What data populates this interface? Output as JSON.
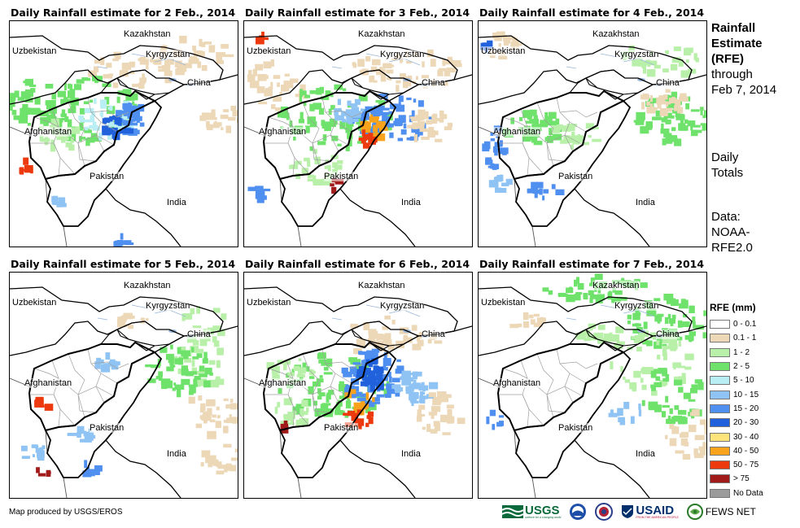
{
  "panels": [
    {
      "title": "Daily Rainfall estimate for 2 Feb., 2014",
      "variant": "d2"
    },
    {
      "title": "Daily Rainfall estimate for 3 Feb., 2014",
      "variant": "d3"
    },
    {
      "title": "Daily Rainfall estimate for 4 Feb., 2014",
      "variant": "d4"
    },
    {
      "title": "Daily Rainfall estimate for 5 Feb., 2014",
      "variant": "d5"
    },
    {
      "title": "Daily Rainfall estimate for 6 Feb., 2014",
      "variant": "d6"
    },
    {
      "title": "Daily Rainfall estimate for 7 Feb., 2014",
      "variant": "d7"
    }
  ],
  "map_labels": {
    "kazakhstan": "Kazakhstan",
    "uzbekistan": "Uzbekistan",
    "kyrgyzstan": "Kyrgyzstan",
    "china": "China",
    "afghanistan": "Afghanistan",
    "pakistan": "Pakistan",
    "india": "India"
  },
  "sidebar": {
    "title_lines": [
      "Rainfall",
      "Estimate",
      "(RFE)"
    ],
    "through_lines": [
      "through",
      "Feb 7, 2014"
    ],
    "daily_lines": [
      "Daily",
      "Totals"
    ],
    "data_lines": [
      "Data:",
      "NOAA-",
      "RFE2.0"
    ]
  },
  "legend": {
    "title": "RFE (mm)",
    "items": [
      {
        "label": "0 - 0.1",
        "color": "#ffffff"
      },
      {
        "label": "0.1 - 1",
        "color": "#ecd7b6"
      },
      {
        "label": "1 - 2",
        "color": "#b9f0a9"
      },
      {
        "label": "2 - 5",
        "color": "#6ee26a"
      },
      {
        "label": "5 - 10",
        "color": "#b8eef4"
      },
      {
        "label": "10 - 15",
        "color": "#8ec3f3"
      },
      {
        "label": "15 - 20",
        "color": "#4f8ff0"
      },
      {
        "label": "20 - 30",
        "color": "#2162dc"
      },
      {
        "label": "30 - 40",
        "color": "#fde37c"
      },
      {
        "label": "40 - 50",
        "color": "#f9a21c"
      },
      {
        "label": "50 - 75",
        "color": "#ec3a0e"
      },
      {
        "label": "> 75",
        "color": "#a11b1b"
      },
      {
        "label": "No Data",
        "color": "#9b9b9b"
      }
    ]
  },
  "credit": "Map produced by USGS/EROS",
  "logos": {
    "usgs": "USGS",
    "usgs_tagline": "science for a changing world",
    "usaid": "USAID",
    "usaid_tagline": "FROM THE AMERICAN PEOPLE",
    "fewsnet": "FEWS NET"
  }
}
